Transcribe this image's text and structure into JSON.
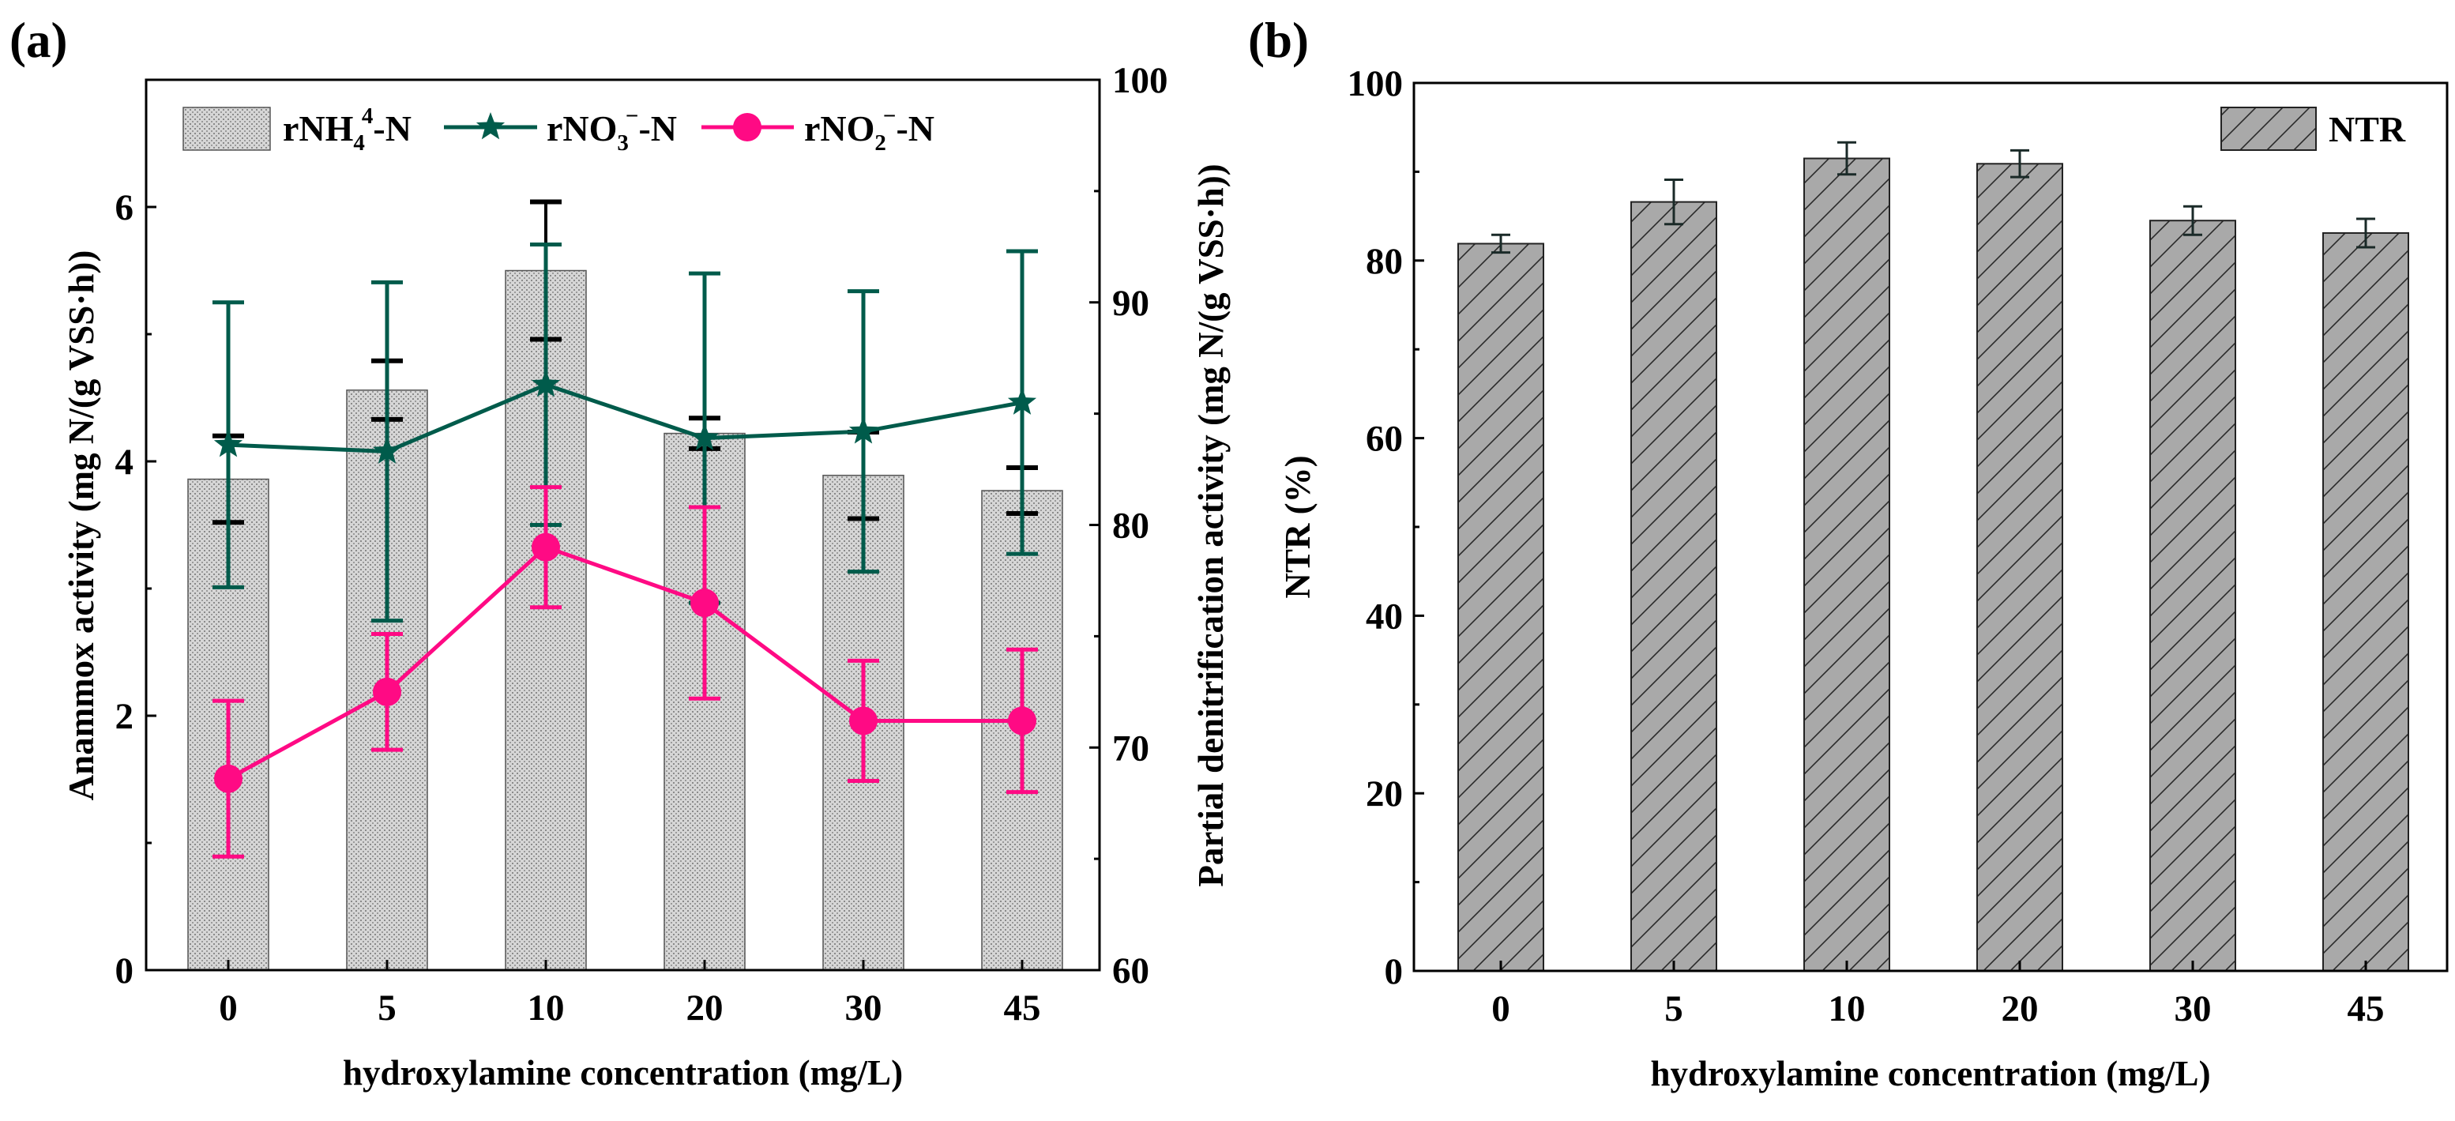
{
  "chart_data": [
    {
      "panel_label": "(a)",
      "type": "bar+line",
      "xlabel": "hydroxylamine concentration (mg/L)",
      "ylabel": "Anammox activity (mg N/(g VSS·h))",
      "ylabel_right": "Partial denitrification activity (mg N/(g VSS·h))",
      "categories": [
        "0",
        "5",
        "10",
        "20",
        "30",
        "45"
      ],
      "ylim": [
        0,
        7
      ],
      "yticks": [
        "0",
        "2",
        "4",
        "6"
      ],
      "ylim_right": [
        60,
        100
      ],
      "yticks_right": [
        "60",
        "70",
        "80",
        "90",
        "100"
      ],
      "legend_position": "top-left",
      "series": [
        {
          "name": "rNH4+-N",
          "legend": {
            "base": "rNH",
            "sub": "4",
            "sup": "4",
            "tail": "-N"
          },
          "type": "bar",
          "axis": "left",
          "color": "#cfcfcf",
          "values": [
            3.86,
            4.56,
            5.5,
            4.22,
            3.89,
            3.77
          ],
          "errors": [
            0.34,
            0.23,
            0.54,
            0.12,
            0.34,
            0.18
          ]
        },
        {
          "name": "rNO3--N",
          "legend": {
            "base": "rNO",
            "sub": "3",
            "sup": "−",
            "tail": "-N"
          },
          "type": "line",
          "marker": "star",
          "axis": "right",
          "color": "#005b4b",
          "values": [
            83.6,
            83.3,
            86.3,
            83.9,
            84.2,
            85.5
          ],
          "errors": [
            6.4,
            7.6,
            6.3,
            7.4,
            6.3,
            6.8
          ]
        },
        {
          "name": "rNO2--N",
          "legend": {
            "base": "rNO",
            "sub": "2",
            "sup": "−",
            "tail": "-N"
          },
          "type": "line",
          "marker": "circle",
          "axis": "right",
          "color": "#ff0a84",
          "values": [
            68.6,
            72.5,
            79.0,
            76.5,
            71.2,
            71.2
          ],
          "errors": [
            3.5,
            2.6,
            2.7,
            4.3,
            2.7,
            3.2
          ]
        }
      ]
    },
    {
      "panel_label": "(b)",
      "type": "bar",
      "xlabel": "hydroxylamine concentration (mg/L)",
      "ylabel": "NTR (%)",
      "categories": [
        "0",
        "5",
        "10",
        "20",
        "30",
        "45"
      ],
      "ylim": [
        0,
        100
      ],
      "yticks": [
        "0",
        "20",
        "40",
        "60",
        "80",
        "100"
      ],
      "legend_position": "top-right",
      "series": [
        {
          "name": "NTR",
          "type": "bar",
          "color": "#a8a8a8",
          "values": [
            81.9,
            86.6,
            91.5,
            90.9,
            84.5,
            83.1
          ],
          "errors": [
            1.0,
            2.5,
            1.8,
            1.5,
            1.6,
            1.6
          ]
        }
      ]
    }
  ]
}
